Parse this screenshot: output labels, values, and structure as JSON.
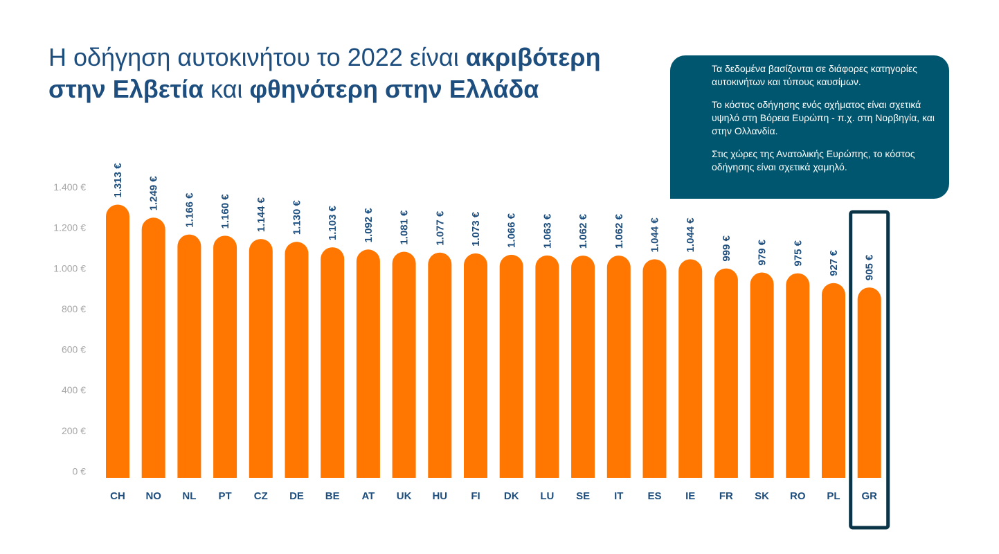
{
  "title": {
    "part1": "Η οδήγηση αυτοκινήτου το 2022 είναι ",
    "part2": "ακριβότερη",
    "part3": "στην Ελβετία",
    "part4": " και ",
    "part5": "φθηνότερη στην Ελλάδα"
  },
  "note": {
    "p1": "Τα δεδομένα βασίζονται σε διάφορες κατηγορίες αυτοκινήτων και τύπους καυσίμων.",
    "p2": "Το κόστος οδήγησης ενός οχήματος είναι σχετικά υψηλό στη Βόρεια Ευρώπη - π.χ. στη Νορβηγία, και στην Ολλανδία.",
    "p3": "Στις χώρες της Ανατολικής Ευρώπης, το κόστος οδήγησης είναι σχετικά χαμηλό."
  },
  "colors": {
    "bar": "#ff7700",
    "label": "#1d4e7e",
    "axis": "#a6a6a6",
    "note_bg": "#00566e",
    "highlight_frame": "#0b3447"
  },
  "chart_data": {
    "type": "bar",
    "categories": [
      "CH",
      "NO",
      "NL",
      "PT",
      "CZ",
      "DE",
      "BE",
      "AT",
      "UK",
      "HU",
      "FI",
      "DK",
      "LU",
      "SE",
      "IT",
      "ES",
      "IE",
      "FR",
      "SK",
      "RO",
      "PL",
      "GR"
    ],
    "values": [
      1313,
      1249,
      1166,
      1160,
      1144,
      1130,
      1103,
      1092,
      1081,
      1077,
      1073,
      1066,
      1063,
      1062,
      1062,
      1044,
      1044,
      999,
      979,
      975,
      927,
      905
    ],
    "value_labels": [
      "1.313 €",
      "1.249 €",
      "1.166 €",
      "1.160 €",
      "1.144 €",
      "1.130 €",
      "1.103 €",
      "1.092 €",
      "1.081 €",
      "1.077 €",
      "1.073 €",
      "1.066 €",
      "1.063 €",
      "1.062 €",
      "1.062 €",
      "1.044 €",
      "1.044 €",
      "999 €",
      "979 €",
      "975 €",
      "927 €",
      "905 €"
    ],
    "yticks": [
      0,
      200,
      400,
      600,
      800,
      1000,
      1200,
      1400
    ],
    "ytick_labels": [
      "0 €",
      "200 €",
      "400 €",
      "600 €",
      "800 €",
      "1.000 €",
      "1.200 €",
      "1.400 €"
    ],
    "ylim": [
      0,
      1400
    ],
    "highlight": "GR",
    "grid": false
  }
}
